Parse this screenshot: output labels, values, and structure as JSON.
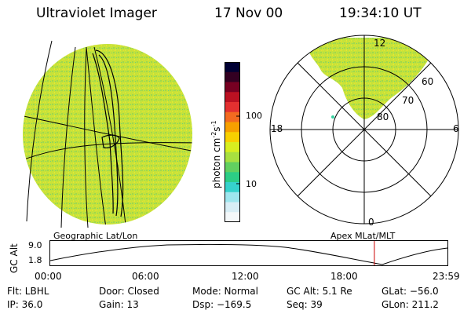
{
  "header": {
    "title": "Ultraviolet Imager",
    "date": "17 Nov 00",
    "time": "19:34:10 UT"
  },
  "left_panel": {
    "caption": "Geographic Lat/Lon"
  },
  "right_panel": {
    "caption": "Apex MLat/MLT",
    "mlt_labels": {
      "top": "12",
      "left": "18",
      "right": "6",
      "bottom": "0"
    },
    "mlat_labels": [
      "60",
      "70",
      "80"
    ]
  },
  "colorbar": {
    "unit_main": "photon cm",
    "unit_exp1": "-2",
    "unit_s": "s",
    "unit_exp2": "-1",
    "ticks": [
      "100",
      "10"
    ],
    "colors": [
      "#000033",
      "#330022",
      "#770022",
      "#bb1122",
      "#e33030",
      "#f36a20",
      "#f7a000",
      "#f8d000",
      "#d8ee20",
      "#a8e040",
      "#62d060",
      "#2ccd86",
      "#36d2cc",
      "#9ee6ee",
      "#d8eef6",
      "#f4f8fa"
    ]
  },
  "timeline": {
    "axis_label": "GC Alt",
    "y_ticks": [
      "9.0",
      "1.8"
    ],
    "x_ticks": [
      "00:00",
      "06:00",
      "12:00",
      "18:00",
      "23:59"
    ],
    "current_time_fraction": 0.816
  },
  "status": {
    "flt": "Flt: LBHL",
    "ip": "IP: 36.0",
    "door": "Door: Closed",
    "gain": "Gain: 13",
    "mode": "Mode: Normal",
    "dsp": "Dsp: −169.5",
    "gc_alt": "GC Alt: 5.1 Re",
    "seq": "Seq: 39",
    "glat": "GLat: −56.0",
    "glon": "GLon: 211.2"
  }
}
